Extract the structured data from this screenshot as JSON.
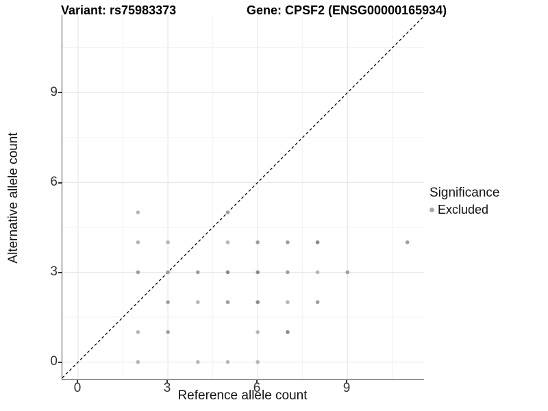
{
  "titles": {
    "left": "Variant: rs75983373",
    "right": "Gene: CPSF2 (ENSG00000165934)"
  },
  "axes": {
    "x_label": "Reference allele count",
    "y_label": "Alternative allele count",
    "x_ticks": [
      "0",
      "3",
      "6",
      "9"
    ],
    "y_ticks": [
      "0",
      "3",
      "6",
      "9"
    ]
  },
  "legend": {
    "title": "Significance",
    "items": [
      {
        "label": "Excluded",
        "color": "#a8a8a8"
      }
    ]
  },
  "colors": {
    "background": "#ffffff",
    "axis_line": "#333333",
    "major_grid": "#e5e5e5",
    "minor_grid": "#f2f2f2",
    "reference_line": "#000000",
    "shades": {
      "light": "#b6b6b6",
      "medium": "#9e9e9e",
      "dark": "#8a8a8a"
    }
  },
  "chart_data": {
    "type": "scatter",
    "title": "Variant: rs75983373 — Gene: CPSF2 (ENSG00000165934)",
    "xlabel": "Reference allele count",
    "ylabel": "Alternative allele count",
    "xlim": [
      -0.55,
      11.55
    ],
    "ylim": [
      -0.55,
      11.55
    ],
    "x_major_ticks": [
      0,
      3,
      6,
      9
    ],
    "y_major_ticks": [
      0,
      3,
      6,
      9
    ],
    "minor_gridlines": [
      1.5,
      4.5,
      7.5,
      10.5
    ],
    "grid": "on",
    "reference_line": {
      "kind": "identity y=x",
      "style": "dashed",
      "color": "#000000"
    },
    "legend_position": "right",
    "series": [
      {
        "name": "Excluded",
        "point_format": "[reference_allele_count, alternative_allele_count, overplot_shade]",
        "points": [
          [
            2,
            5,
            "light"
          ],
          [
            5,
            5,
            "medium"
          ],
          [
            2,
            4,
            "light"
          ],
          [
            3,
            4,
            "light"
          ],
          [
            5,
            4,
            "light"
          ],
          [
            6,
            4,
            "medium"
          ],
          [
            7,
            4,
            "medium"
          ],
          [
            8,
            4,
            "dark"
          ],
          [
            11,
            4,
            "medium"
          ],
          [
            2,
            3,
            "medium"
          ],
          [
            3,
            3,
            "medium"
          ],
          [
            4,
            3,
            "medium"
          ],
          [
            5,
            3,
            "dark"
          ],
          [
            6,
            3,
            "dark"
          ],
          [
            7,
            3,
            "medium"
          ],
          [
            8,
            3,
            "light"
          ],
          [
            9,
            3,
            "medium"
          ],
          [
            3,
            2,
            "medium"
          ],
          [
            4,
            2,
            "light"
          ],
          [
            5,
            2,
            "medium"
          ],
          [
            6,
            2,
            "dark"
          ],
          [
            7,
            2,
            "light"
          ],
          [
            8,
            2,
            "medium"
          ],
          [
            2,
            1,
            "light"
          ],
          [
            3,
            1,
            "medium"
          ],
          [
            6,
            1,
            "light"
          ],
          [
            7,
            1,
            "dark"
          ],
          [
            2,
            0,
            "light"
          ],
          [
            4,
            0,
            "light"
          ],
          [
            5,
            0,
            "light"
          ],
          [
            6,
            0,
            "light"
          ]
        ]
      }
    ]
  }
}
